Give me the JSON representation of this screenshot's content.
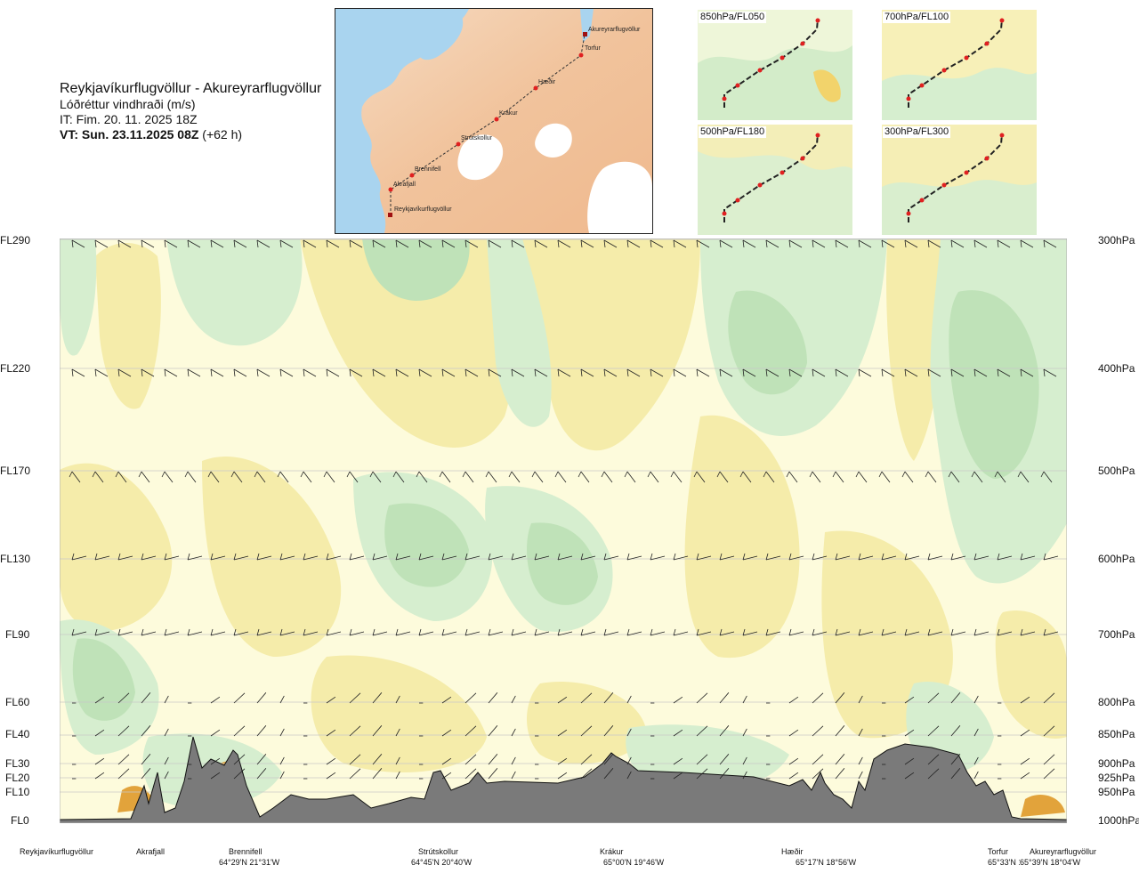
{
  "header": {
    "title": "Reykjavíkurflugvöllur - Akureyrarflugvöllur",
    "subtitle": "Lóðréttur vindhraði (m/s)",
    "issue": "IT: Fim. 20. 11. 2025 18Z",
    "valid_bold": "VT: Sun. 23.11.2025 08Z",
    "valid_offset": " (+62 h)"
  },
  "route_map": {
    "points": [
      {
        "name": "Akureyrarflugvöllur"
      },
      {
        "name": "Torfur"
      },
      {
        "name": "Hæðir"
      },
      {
        "name": "Krákur"
      },
      {
        "name": "Strútskollur"
      },
      {
        "name": "Brennifell"
      },
      {
        "name": "Akrafjall"
      },
      {
        "name": "Reykjavíkurflugvöllur"
      }
    ]
  },
  "panels": [
    {
      "label": "850hPa/FL050"
    },
    {
      "label": "700hPa/FL100"
    },
    {
      "label": "500hPa/FL180"
    },
    {
      "label": "300hPa/FL300"
    }
  ],
  "flight_levels": [
    {
      "fl": "FL290",
      "pa": "300hPa"
    },
    {
      "fl": "FL220",
      "pa": "400hPa"
    },
    {
      "fl": "FL170",
      "pa": "500hPa"
    },
    {
      "fl": "FL130",
      "pa": "600hPa"
    },
    {
      "fl": "FL90",
      "pa": "700hPa"
    },
    {
      "fl": "FL60",
      "pa": "800hPa"
    },
    {
      "fl": "FL40",
      "pa": "850hPa"
    },
    {
      "fl": "FL30",
      "pa": "900hPa"
    },
    {
      "fl": "FL20",
      "pa": "925hPa"
    },
    {
      "fl": "FL10",
      "pa": "950hPa"
    },
    {
      "fl": "FL0",
      "pa": "1000hPa"
    }
  ],
  "waypoints": [
    {
      "name": "Reykjavíkurflugvöllur",
      "coord": ""
    },
    {
      "name": "Akrafjall",
      "coord": ""
    },
    {
      "name": "Brennifell",
      "coord": "64°29'N 21°31'W"
    },
    {
      "name": "Strútskollur",
      "coord": "64°45'N 20°40'W"
    },
    {
      "name": "Krákur",
      "coord": "65°00'N 19°46'W"
    },
    {
      "name": "Hæðir",
      "coord": "65°17'N 18°56'W"
    },
    {
      "name": "Torfur",
      "coord": "65°33'N 18°07'W"
    },
    {
      "name": "Akureyrarflugvöllur",
      "coord": "65°39'N 18°04'W"
    }
  ],
  "colors": {
    "sink": "#f5ecaa",
    "lift_light": "#d6eecf",
    "lift_mid": "#bfe2b8",
    "neutral": "#fdfbdc",
    "terrain": "#7a7a7a",
    "strong_sink": "#e2a33b",
    "map_land": "#f3c9a3",
    "map_sea": "#a9d4ef"
  }
}
